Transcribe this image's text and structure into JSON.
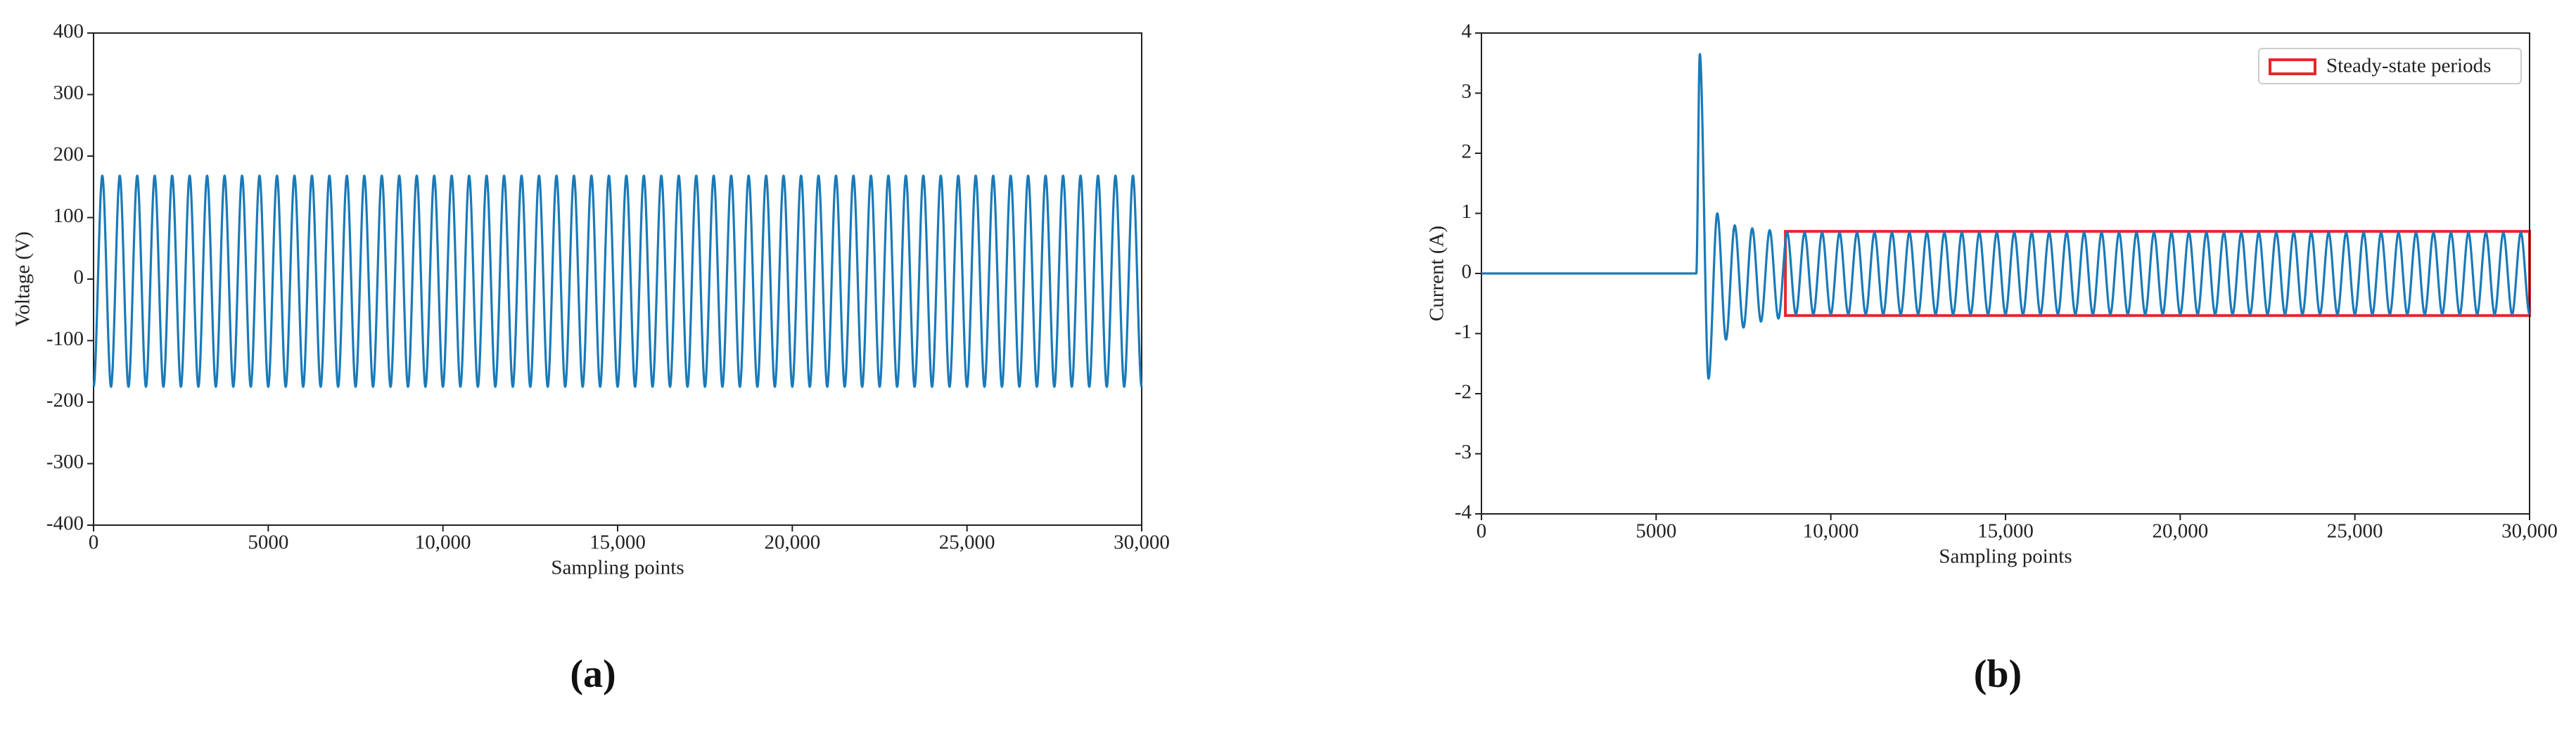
{
  "chart_data": [
    {
      "type": "line",
      "panel_label": "(a)",
      "xlabel": "Sampling points",
      "ylabel": "Voltage (V)",
      "xlim": [
        0,
        30000
      ],
      "ylim": [
        -400,
        400
      ],
      "xticks": [
        0,
        5000,
        {
          "value": 10000,
          "label": "10,000"
        },
        {
          "value": 15000,
          "label": "15,000"
        },
        {
          "value": 20000,
          "label": "20,000"
        },
        {
          "value": 25000,
          "label": "25,000"
        },
        {
          "value": 30000,
          "label": "30,000"
        }
      ],
      "yticks": [
        -400,
        -300,
        -200,
        -100,
        0,
        100,
        200,
        300,
        400
      ],
      "color": "#1a7ab8",
      "x": [
        0,
        250,
        500,
        750,
        1000,
        1250,
        1500,
        1750,
        2000,
        2250,
        2500,
        2750,
        3000,
        3250,
        3500,
        3750,
        4000,
        4250,
        4500,
        4750,
        5000,
        5250,
        5500,
        5750,
        6000,
        6250,
        6500,
        6750,
        7000,
        7250,
        7500,
        7750,
        8000,
        8250,
        8500,
        8750,
        9000,
        9250,
        9500,
        9750,
        10000,
        10250,
        10500,
        10750,
        11000,
        11250,
        11500,
        11750,
        12000,
        12250,
        12500,
        12750,
        13000,
        13250,
        13500,
        13750,
        14000,
        14250,
        14500,
        14750,
        15000,
        15250,
        15500,
        15750,
        16000,
        16250,
        16500,
        16750,
        17000,
        17250,
        17500,
        17750,
        18000,
        18250,
        18500,
        18750,
        19000,
        19250,
        19500,
        19750,
        20000,
        20250,
        20500,
        20750,
        21000,
        21250,
        21500,
        21750,
        22000,
        22250,
        22500,
        22750,
        23000,
        23250,
        23500,
        23750,
        24000,
        24250,
        24500,
        24750,
        25000,
        25250,
        25500,
        25750,
        26000,
        26250,
        26500,
        26750,
        27000,
        27250,
        27500,
        27750,
        28000,
        28250,
        28500,
        28750,
        29000,
        29250,
        29500,
        29750,
        30000
      ],
      "values": [
        -175,
        168,
        -175,
        168,
        -175,
        168,
        -175,
        168,
        -175,
        168,
        -175,
        168,
        -175,
        168,
        -175,
        168,
        -175,
        168,
        -175,
        168,
        -175,
        168,
        -175,
        168,
        -175,
        168,
        -175,
        168,
        -175,
        168,
        -175,
        168,
        -175,
        168,
        -175,
        168,
        -175,
        168,
        -175,
        168,
        -175,
        168,
        -175,
        168,
        -175,
        168,
        -175,
        168,
        -175,
        168,
        -175,
        168,
        -175,
        168,
        -175,
        168,
        -175,
        168,
        -175,
        168,
        -175,
        168,
        -175,
        168,
        -175,
        168,
        -175,
        168,
        -175,
        168,
        -175,
        168,
        -175,
        168,
        -175,
        168,
        -175,
        168,
        -175,
        168,
        -175,
        168,
        -175,
        168,
        -175,
        168,
        -175,
        168,
        -175,
        168,
        -175,
        168,
        -175,
        168,
        -175,
        168,
        -175,
        168,
        -175,
        168,
        -175,
        168,
        -175,
        168,
        -175,
        168,
        -175,
        168,
        -175,
        168,
        -175,
        168,
        -175,
        168,
        -175,
        168,
        -175,
        168,
        -175,
        168,
        -175
      ]
    },
    {
      "type": "line",
      "panel_label": "(b)",
      "xlabel": "Sampling points",
      "ylabel": "Current (A)",
      "xlim": [
        0,
        30000
      ],
      "ylim": [
        -4,
        4
      ],
      "xticks": [
        0,
        5000,
        {
          "value": 10000,
          "label": "10,000"
        },
        {
          "value": 15000,
          "label": "15,000"
        },
        {
          "value": 20000,
          "label": "20,000"
        },
        {
          "value": 25000,
          "label": "25,000"
        },
        {
          "value": 30000,
          "label": "30,000"
        }
      ],
      "yticks": [
        -4,
        -3,
        -2,
        -1,
        0,
        1,
        2,
        3,
        4
      ],
      "color": "#1a7ab8",
      "box": {
        "label": "Steady-state periods",
        "color": "#e8262a",
        "x": [
          8700,
          30000
        ],
        "y": [
          -0.7,
          0.7
        ]
      },
      "x": [
        0,
        6150,
        6250,
        6500,
        6750,
        7000,
        7250,
        7500,
        7750,
        8000,
        8250,
        8500,
        8750,
        9000,
        9250,
        9500,
        9750,
        10000,
        10250,
        10500,
        10750,
        11000,
        11250,
        11500,
        11750,
        12000,
        12250,
        12500,
        12750,
        13000,
        13250,
        13500,
        13750,
        14000,
        14250,
        14500,
        14750,
        15000,
        15250,
        15500,
        15750,
        16000,
        16250,
        16500,
        16750,
        17000,
        17250,
        17500,
        17750,
        18000,
        18250,
        18500,
        18750,
        19000,
        19250,
        19500,
        19750,
        20000,
        20250,
        20500,
        20750,
        21000,
        21250,
        21500,
        21750,
        22000,
        22250,
        22500,
        22750,
        23000,
        23250,
        23500,
        23750,
        24000,
        24250,
        24500,
        24750,
        25000,
        25250,
        25500,
        25750,
        26000,
        26250,
        26500,
        26750,
        27000,
        27250,
        27500,
        27750,
        28000,
        28250,
        28500,
        28750,
        29000,
        29250,
        29500,
        29750,
        30000
      ],
      "values": [
        0,
        0,
        3.65,
        -1.75,
        1,
        -1.1,
        0.8,
        -0.9,
        0.75,
        -0.8,
        0.72,
        -0.75,
        0.68,
        -0.68,
        0.68,
        -0.68,
        0.68,
        -0.68,
        0.68,
        -0.68,
        0.68,
        -0.68,
        0.68,
        -0.68,
        0.68,
        -0.68,
        0.68,
        -0.68,
        0.68,
        -0.68,
        0.68,
        -0.68,
        0.68,
        -0.68,
        0.68,
        -0.68,
        0.68,
        -0.68,
        0.68,
        -0.68,
        0.68,
        -0.68,
        0.68,
        -0.68,
        0.68,
        -0.68,
        0.68,
        -0.68,
        0.68,
        -0.68,
        0.68,
        -0.68,
        0.68,
        -0.68,
        0.68,
        -0.68,
        0.68,
        -0.68,
        0.68,
        -0.68,
        0.68,
        -0.68,
        0.68,
        -0.68,
        0.68,
        -0.68,
        0.68,
        -0.68,
        0.68,
        -0.68,
        0.68,
        -0.68,
        0.68,
        -0.68,
        0.68,
        -0.68,
        0.68,
        -0.68,
        0.68,
        -0.68,
        0.68,
        -0.68,
        0.68,
        -0.68,
        0.68,
        -0.68,
        0.68,
        -0.68,
        0.68,
        -0.68,
        0.68,
        -0.68,
        0.68,
        -0.68,
        0.68,
        -0.68,
        0.68,
        -0.68
      ]
    }
  ]
}
